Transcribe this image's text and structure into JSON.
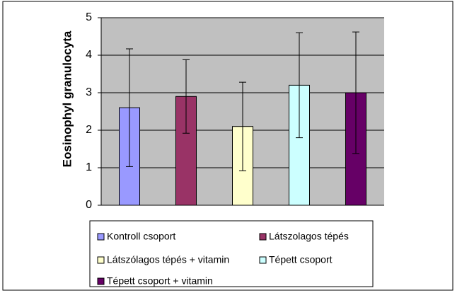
{
  "chart_data": {
    "type": "bar",
    "y_label": "Eosinophyl granulocyta",
    "categories": [
      "Kontroll csoport",
      "Látszolagos tépés",
      "Látszólagos tépés + vitamin",
      "Tépett csoport",
      "Tépett csoport + vitamin"
    ],
    "values": [
      2.6,
      2.9,
      2.1,
      3.2,
      3.0
    ],
    "errors": [
      1.57,
      0.98,
      1.18,
      1.4,
      1.62
    ],
    "colors": [
      "#9999ff",
      "#993366",
      "#ffffcc",
      "#ccffff",
      "#660066"
    ],
    "ylim": [
      0,
      5
    ],
    "yticks": [
      0,
      1,
      2,
      3,
      4,
      5
    ],
    "grid": true
  }
}
